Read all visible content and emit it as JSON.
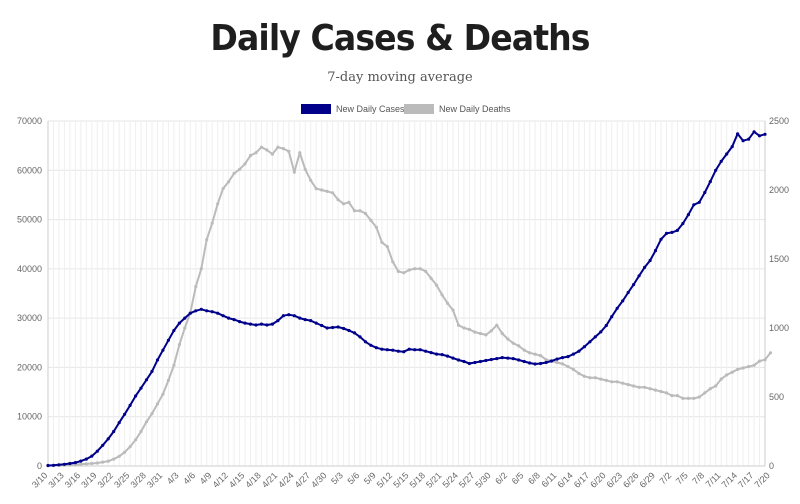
{
  "chart_data": {
    "type": "line",
    "title": "Daily Cases & Deaths",
    "subtitle": "7-day moving average",
    "x_labels": [
      "3/10",
      "3/13",
      "3/16",
      "3/19",
      "3/22",
      "3/25",
      "3/28",
      "3/31",
      "4/3",
      "4/6",
      "4/9",
      "4/12",
      "4/15",
      "4/18",
      "4/21",
      "4/24",
      "4/27",
      "4/30",
      "5/3",
      "5/6",
      "5/9",
      "5/12",
      "5/15",
      "5/18",
      "5/21",
      "5/24",
      "5/27",
      "5/30",
      "6/2",
      "6/5",
      "6/8",
      "6/11",
      "6/14",
      "6/17",
      "6/20",
      "6/23",
      "6/26",
      "6/29",
      "7/2",
      "7/5",
      "7/8",
      "7/11",
      "7/14",
      "7/17",
      "7/20"
    ],
    "y_left": {
      "min": 0,
      "max": 70000,
      "ticks": [
        0,
        10000,
        20000,
        30000,
        40000,
        50000,
        60000,
        70000
      ]
    },
    "y_right": {
      "min": 0,
      "max": 2500,
      "ticks": [
        0,
        500,
        1000,
        1500,
        2000,
        2500
      ]
    },
    "grid": true,
    "legend_position": "top-center",
    "series": [
      {
        "name": "New Daily Cases",
        "axis": "left",
        "color": "#00008b",
        "values": [
          100,
          150,
          250,
          350,
          500,
          700,
          1000,
          1400,
          2000,
          3000,
          4200,
          5500,
          7000,
          8800,
          10500,
          12300,
          14200,
          15800,
          17500,
          19200,
          21500,
          23500,
          25500,
          27500,
          29000,
          30000,
          31000,
          31500,
          31800,
          31500,
          31300,
          31000,
          30500,
          30000,
          29700,
          29300,
          29000,
          28800,
          28600,
          28800,
          28600,
          28800,
          29500,
          30500,
          30700,
          30500,
          30000,
          29700,
          29500,
          29000,
          28500,
          28000,
          28100,
          28200,
          27900,
          27500,
          27000,
          26200,
          25200,
          24500,
          24000,
          23700,
          23600,
          23500,
          23300,
          23200,
          23700,
          23600,
          23600,
          23300,
          23000,
          22700,
          22600,
          22300,
          21900,
          21500,
          21200,
          20800,
          21000,
          21200,
          21400,
          21600,
          21800,
          22000,
          21900,
          21800,
          21500,
          21200,
          20900,
          20700,
          20800,
          21000,
          21300,
          21700,
          22000,
          22200,
          22700,
          23300,
          24200,
          25200,
          26200,
          27200,
          28500,
          30300,
          32000,
          33500,
          35200,
          36800,
          38600,
          40300,
          41700,
          43700,
          46000,
          47200,
          47400,
          47800,
          49200,
          51000,
          53000,
          53500,
          55500,
          57700,
          60000,
          61800,
          63300,
          64800,
          67400,
          66000,
          66300,
          67800,
          67000,
          67300
        ]
      },
      {
        "name": "New Daily Deaths",
        "axis": "right",
        "color": "#bbbbbb",
        "values": [
          2,
          3,
          4,
          6,
          8,
          10,
          12,
          15,
          18,
          22,
          28,
          35,
          50,
          70,
          100,
          140,
          190,
          250,
          320,
          380,
          450,
          520,
          620,
          730,
          880,
          1000,
          1110,
          1300,
          1430,
          1640,
          1760,
          1900,
          2010,
          2060,
          2120,
          2150,
          2190,
          2250,
          2270,
          2310,
          2290,
          2260,
          2310,
          2300,
          2280,
          2130,
          2270,
          2150,
          2070,
          2010,
          2000,
          1990,
          1980,
          1930,
          1900,
          1910,
          1850,
          1850,
          1830,
          1780,
          1730,
          1620,
          1590,
          1480,
          1410,
          1400,
          1420,
          1430,
          1430,
          1410,
          1360,
          1310,
          1240,
          1180,
          1130,
          1020,
          1000,
          990,
          970,
          960,
          950,
          980,
          1020,
          960,
          920,
          890,
          870,
          840,
          820,
          810,
          800,
          770,
          760,
          750,
          740,
          720,
          700,
          670,
          650,
          640,
          640,
          630,
          620,
          610,
          610,
          600,
          590,
          580,
          570,
          570,
          560,
          550,
          540,
          530,
          510,
          510,
          490,
          490,
          490,
          500,
          530,
          560,
          580,
          630,
          660,
          680,
          700,
          710,
          720,
          730,
          760,
          770,
          820
        ]
      }
    ]
  }
}
